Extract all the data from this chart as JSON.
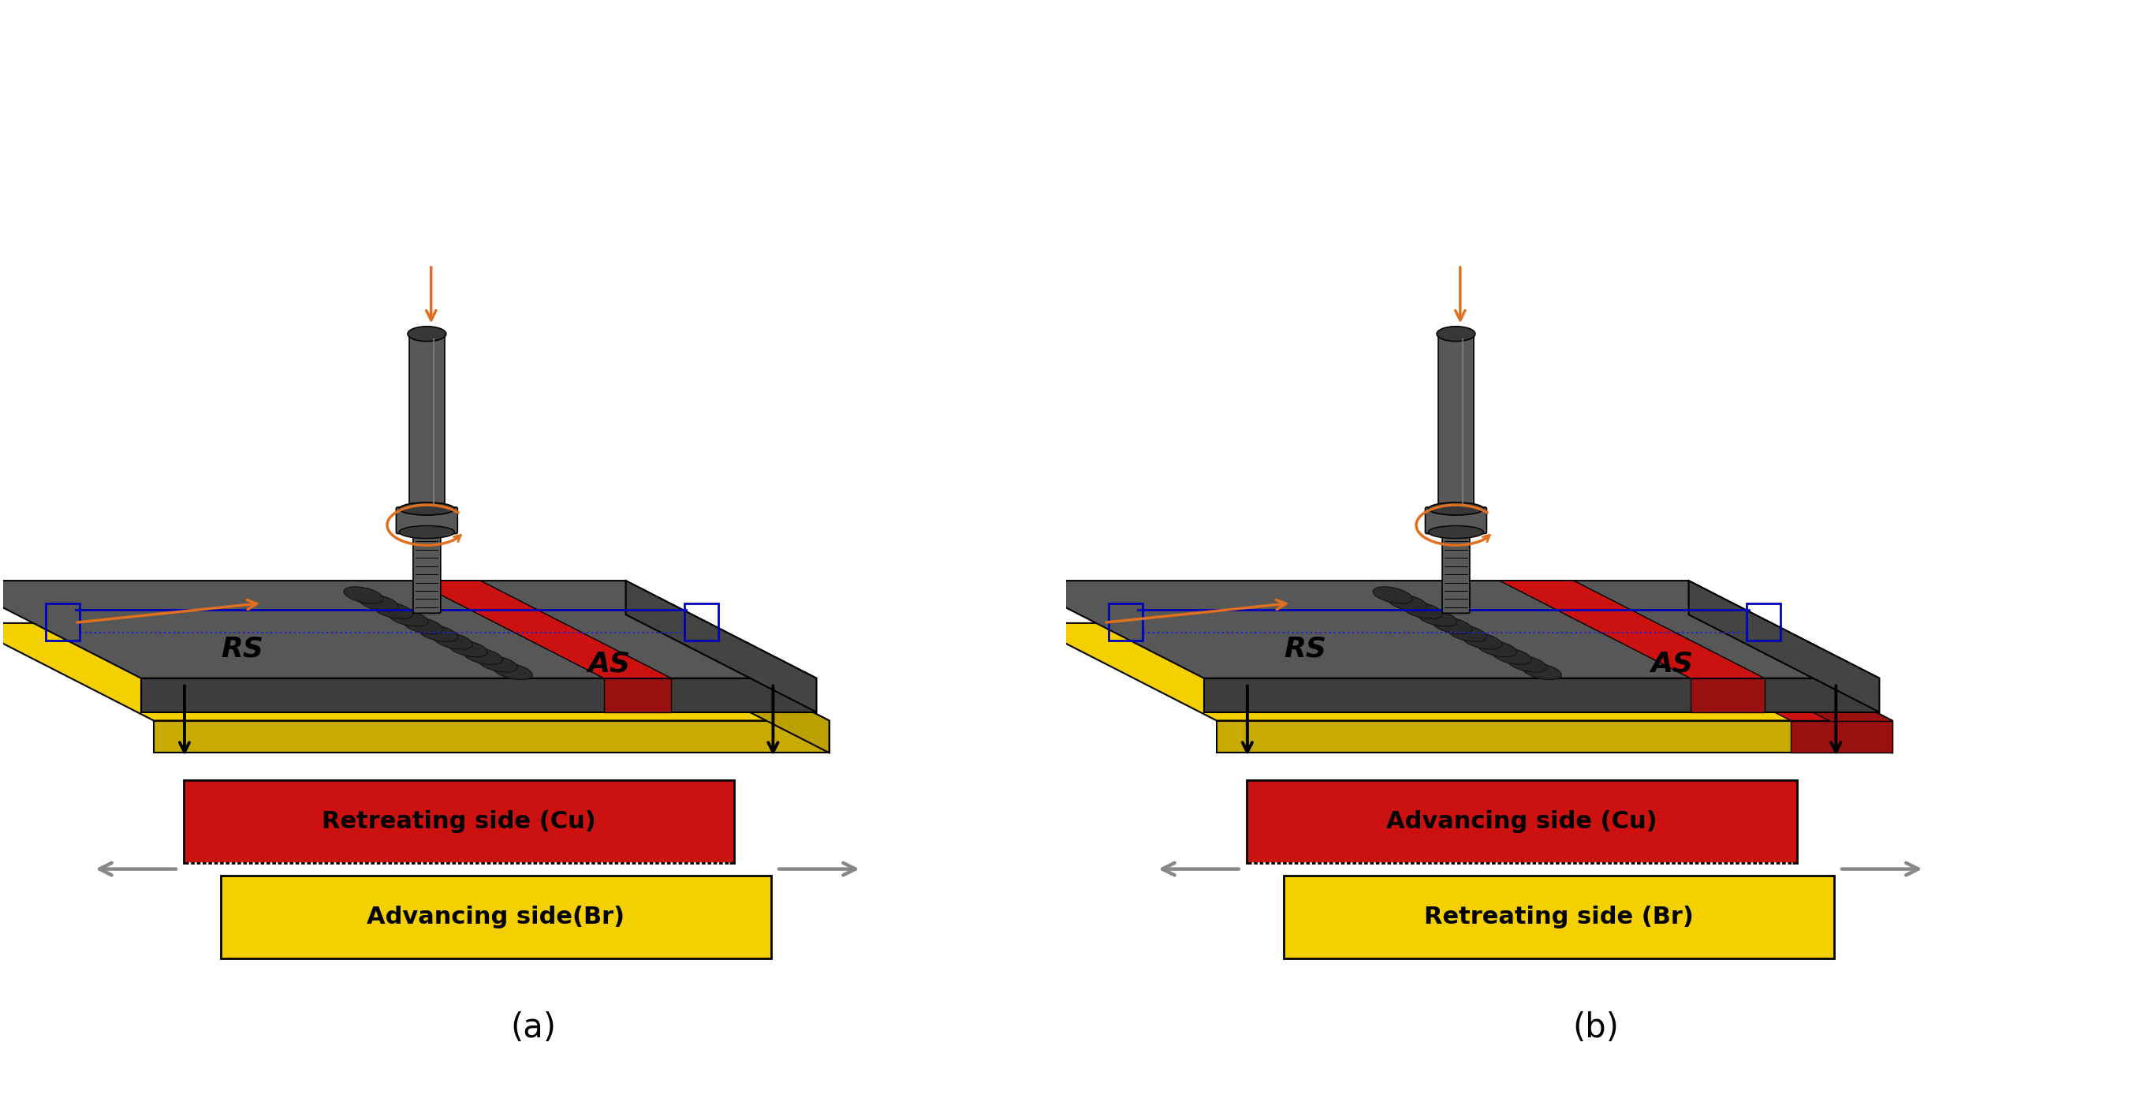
{
  "bg_color": "#ffffff",
  "panel_a": {
    "label": "(a)",
    "legend": {
      "top_label": "Retreating side (Cu)",
      "top_color": "#cc1111",
      "bottom_label": "Advancing side(Br)",
      "bottom_color": "#f5d000"
    }
  },
  "panel_b": {
    "label": "(b)",
    "legend": {
      "top_label": "Advancing side (Cu)",
      "top_color": "#cc1111",
      "bottom_label": "Retreating side (Br)",
      "bottom_color": "#f5d000"
    }
  },
  "plate_gray": "#575757",
  "plate_gray_dark": "#3d3d3d",
  "plate_gray_side": "#444444",
  "plate_red": "#cc1111",
  "plate_red_dark": "#991111",
  "plate_yellow": "#f5d000",
  "plate_yellow_dark": "#c8aa00",
  "tool_body": "#585858",
  "tool_dark": "#383838",
  "orange": "#e07020",
  "blue_solid": "#0000bb",
  "blue_dot": "#2222cc",
  "gray_arrow": "#888888",
  "label_fontsize": 30,
  "legend_fontsize": 22,
  "rs_as_fontsize": 26
}
